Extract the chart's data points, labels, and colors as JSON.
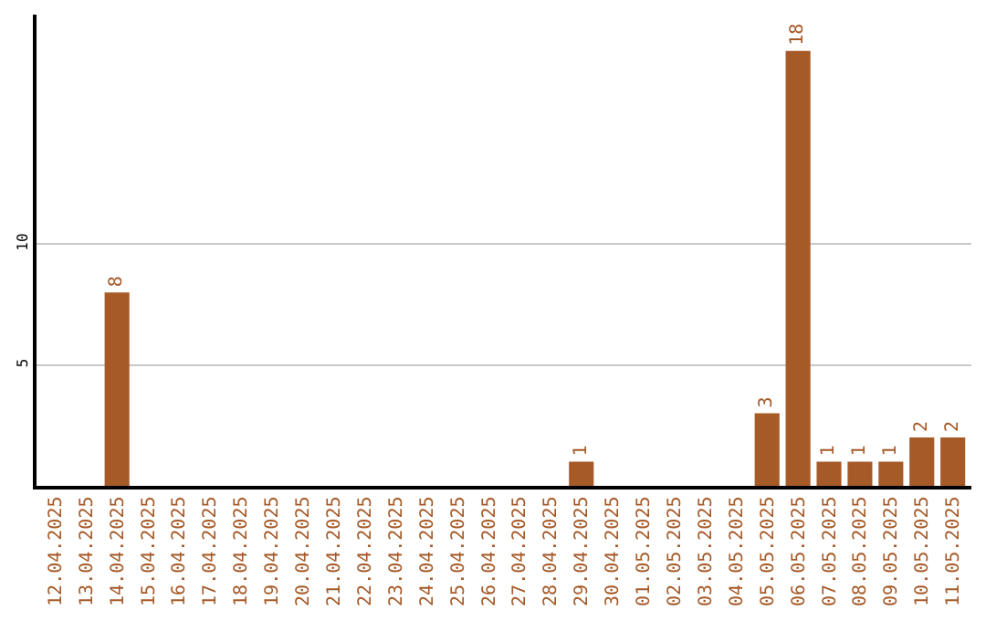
{
  "chart_data": {
    "type": "bar",
    "categories": [
      "12.04.2025",
      "13.04.2025",
      "14.04.2025",
      "15.04.2025",
      "16.04.2025",
      "17.04.2025",
      "18.04.2025",
      "19.04.2025",
      "20.04.2025",
      "21.04.2025",
      "22.04.2025",
      "23.04.2025",
      "24.04.2025",
      "25.04.2025",
      "26.04.2025",
      "27.04.2025",
      "28.04.2025",
      "29.04.2025",
      "30.04.2025",
      "01.05.2025",
      "02.05.2025",
      "03.05.2025",
      "04.05.2025",
      "05.05.2025",
      "06.05.2025",
      "07.05.2025",
      "08.05.2025",
      "09.05.2025",
      "10.05.2025",
      "11.05.2025"
    ],
    "values": [
      0,
      0,
      8,
      0,
      0,
      0,
      0,
      0,
      0,
      0,
      0,
      0,
      0,
      0,
      0,
      0,
      0,
      1,
      0,
      0,
      0,
      0,
      0,
      3,
      18,
      1,
      1,
      1,
      2,
      2
    ],
    "value_labels": [
      null,
      null,
      "8",
      null,
      null,
      null,
      null,
      null,
      null,
      null,
      null,
      null,
      null,
      null,
      null,
      null,
      null,
      "1",
      null,
      null,
      null,
      null,
      null,
      "3",
      "18",
      "1",
      "1",
      "1",
      "2",
      "2"
    ],
    "color": "#a65a28",
    "ylim": [
      0,
      19.5
    ],
    "yticks": [
      5,
      10
    ],
    "grid": "y",
    "legend": false
  }
}
